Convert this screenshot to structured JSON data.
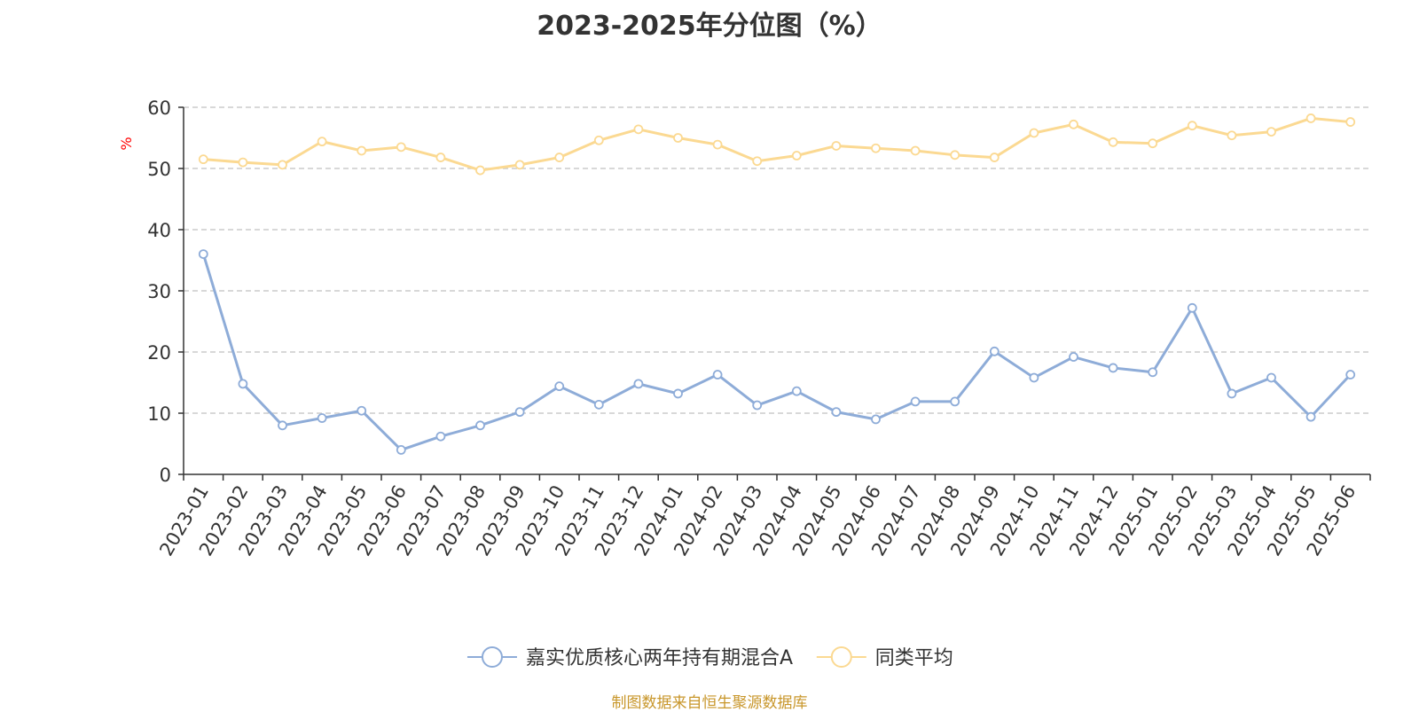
{
  "chart_data": {
    "type": "line",
    "title": "2023-2025年分位图（%）",
    "ylabel": "%",
    "xlabel": "",
    "ylim": [
      0,
      60
    ],
    "yticks": [
      0,
      10,
      20,
      30,
      40,
      50,
      60
    ],
    "grid": true,
    "legend_position": "bottom",
    "categories": [
      "2023-01",
      "2023-02",
      "2023-03",
      "2023-04",
      "2023-05",
      "2023-06",
      "2023-07",
      "2023-08",
      "2023-09",
      "2023-10",
      "2023-11",
      "2023-12",
      "2024-01",
      "2024-02",
      "2024-03",
      "2024-04",
      "2024-05",
      "2024-06",
      "2024-07",
      "2024-08",
      "2024-09",
      "2024-10",
      "2024-11",
      "2024-12",
      "2025-01",
      "2025-02",
      "2025-03",
      "2025-04",
      "2025-05",
      "2025-06"
    ],
    "series": [
      {
        "name": "嘉实优质核心两年持有期混合A",
        "color": "#8eacd8",
        "values": [
          36.0,
          14.8,
          8.0,
          9.2,
          10.4,
          4.0,
          6.2,
          8.0,
          10.2,
          14.4,
          11.4,
          14.8,
          13.2,
          16.3,
          11.3,
          13.6,
          10.2,
          9.0,
          11.9,
          11.9,
          20.1,
          15.8,
          19.2,
          17.4,
          16.7,
          27.2,
          13.2,
          15.8,
          9.4,
          16.3
        ]
      },
      {
        "name": "同类平均",
        "color": "#fbd992",
        "values": [
          51.5,
          51.0,
          50.6,
          54.4,
          52.9,
          53.5,
          51.8,
          49.7,
          50.6,
          51.8,
          54.6,
          56.4,
          55.0,
          53.9,
          51.2,
          52.1,
          53.7,
          53.3,
          52.9,
          52.2,
          51.8,
          55.8,
          57.2,
          54.3,
          54.1,
          57.0,
          55.4,
          56.0,
          58.2,
          57.6
        ]
      }
    ]
  },
  "source_note": "制图数据来自恒生聚源数据库"
}
